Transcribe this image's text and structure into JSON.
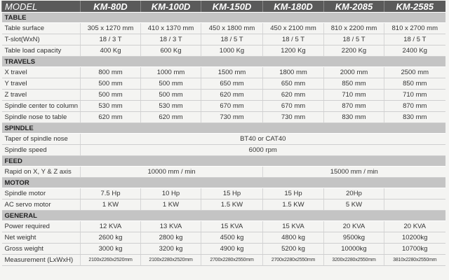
{
  "header": {
    "label": "MODEL",
    "models": [
      "KM-80D",
      "KM-100D",
      "KM-150D",
      "KM-180D",
      "KM-2085",
      "KM-2585"
    ]
  },
  "sections": [
    {
      "title": "TABLE",
      "rows": [
        {
          "label": "Table surface",
          "cells": [
            "305 x 1270 mm",
            "410 x 1370 mm",
            "450 x 1800 mm",
            "450 x 2100 mm",
            "810 x 2200 mm",
            "810 x 2700 mm"
          ]
        },
        {
          "label": "T-slot(WxN)",
          "cells": [
            "18 / 3 T",
            "18 / 3 T",
            "18 / 5 T",
            "18 / 5 T",
            "18 / 5 T",
            "18 / 5 T"
          ]
        },
        {
          "label": "Table load capacity",
          "cells": [
            "400 Kg",
            "600 Kg",
            "1000 Kg",
            "1200 Kg",
            "2200 Kg",
            "2400 Kg"
          ]
        }
      ]
    },
    {
      "title": "TRAVELS",
      "rows": [
        {
          "label": "X travel",
          "cells": [
            "800 mm",
            "1000 mm",
            "1500 mm",
            "1800 mm",
            "2000 mm",
            "2500 mm"
          ]
        },
        {
          "label": "Y travel",
          "cells": [
            "500 mm",
            "500 mm",
            "650 mm",
            "650 mm",
            "850 mm",
            "850 mm"
          ]
        },
        {
          "label": "Z travel",
          "cells": [
            "500 mm",
            "500 mm",
            "620 mm",
            "620 mm",
            "710 mm",
            "710 mm"
          ]
        },
        {
          "label": "Spindle center to column",
          "cells": [
            "530 mm",
            "530 mm",
            "670 mm",
            "670 mm",
            "870 mm",
            "870 mm"
          ]
        },
        {
          "label": "Spindle nose to table",
          "cells": [
            "620 mm",
            "620 mm",
            "730 mm",
            "730 mm",
            "830 mm",
            "830 mm"
          ]
        }
      ]
    },
    {
      "title": "SPINDLE",
      "rows": [
        {
          "label": "Taper of spindle nose",
          "cells": [
            "BT40 or CAT40"
          ]
        },
        {
          "label": "Spindle speed",
          "cells": [
            "6000 rpm"
          ]
        }
      ]
    },
    {
      "title": "FEED",
      "rows": [
        {
          "label": "Rapid on X, Y & Z axis",
          "cells": [
            "10000 mm / min",
            "15000 mm / min"
          ]
        }
      ]
    },
    {
      "title": "MOTOR",
      "rows": [
        {
          "label": "Spindle motor",
          "cells": [
            "7.5 Hp",
            "10 Hp",
            "15 Hp",
            "15 Hp",
            "20Hp"
          ]
        },
        {
          "label": "AC servo motor",
          "cells": [
            "1 KW",
            "1 KW",
            "1.5 KW",
            "1.5 KW",
            "5 KW"
          ]
        }
      ]
    },
    {
      "title": "GENERAL",
      "rows": [
        {
          "label": "Power required",
          "cells": [
            "12 KVA",
            "13 KVA",
            "15 KVA",
            "15 KVA",
            "20 KVA",
            "20 KVA"
          ]
        },
        {
          "label": "Net weight",
          "cells": [
            "2600 kg",
            "2800 kg",
            "4500 kg",
            "4800 kg",
            "9500kg",
            "10200kg"
          ]
        },
        {
          "label": "Gross weight",
          "cells": [
            "3000 kg",
            "3200 kg",
            "4900 kg",
            "5200 kg",
            "10000kg",
            "10700kg"
          ]
        },
        {
          "label": "Measurement (LxWxH)",
          "cells": [
            "2100x2260x2520mm",
            "2100x2280x2520mm",
            "2700x2280x2550mm",
            "2700x2280x2550mm",
            "3200x2280x2550mm",
            "3810x2280x2550mm"
          ]
        }
      ]
    }
  ]
}
